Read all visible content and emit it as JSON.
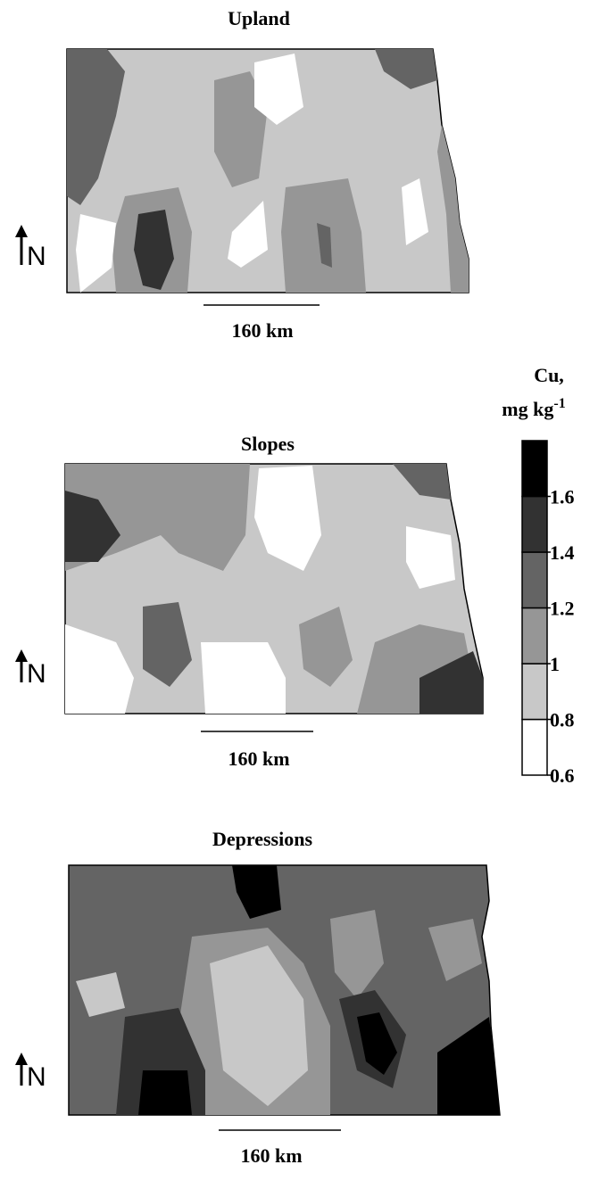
{
  "panels": [
    {
      "title": "Upland",
      "scale": "160 km",
      "north": "N"
    },
    {
      "title": "Slopes",
      "scale": "160 km",
      "north": "N"
    },
    {
      "title": "Depressions",
      "scale": "160 km",
      "north": "N"
    }
  ],
  "legend": {
    "title_line1": "Cu,",
    "title_line2": "mg kg",
    "title_sup": "-1",
    "ticks": [
      0.6,
      0.8,
      1,
      1.2,
      1.4,
      1.6
    ],
    "lim": [
      0.6,
      1.8
    ],
    "colors": [
      "#ffffff",
      "#c8c8c8",
      "#969696",
      "#646464",
      "#323232",
      "#000000"
    ]
  }
}
